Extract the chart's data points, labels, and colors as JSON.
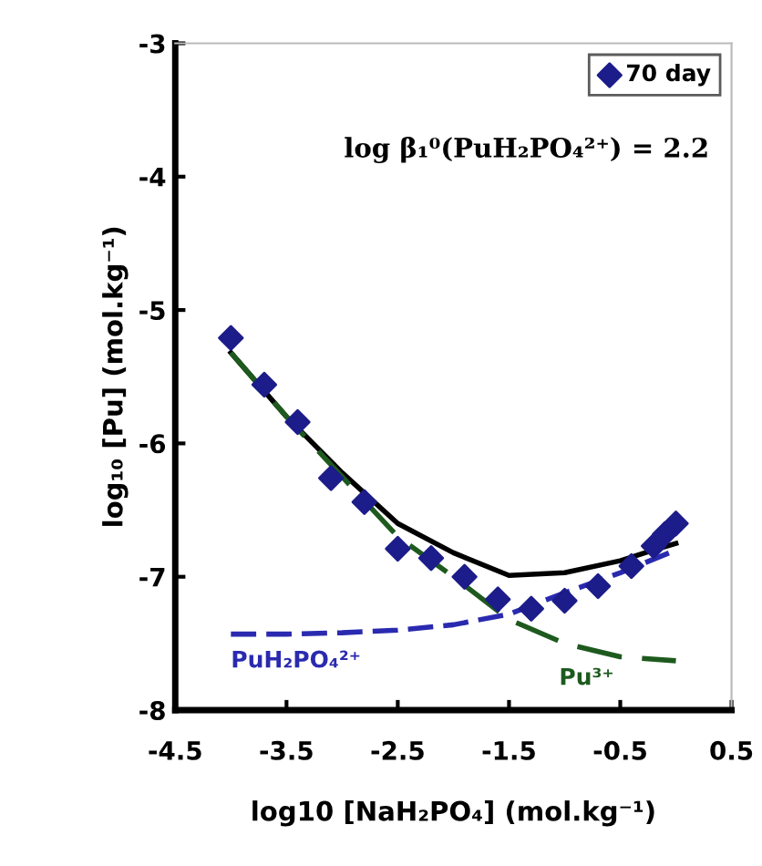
{
  "chart_data": {
    "type": "scatter",
    "xlabel": "log10 [NaH₂PO₄] (mol.kg⁻¹)",
    "ylabel": "log₁₀ [Pu] (mol.kg⁻¹)",
    "annotations": [
      "log β₁⁰(PuH₂PO₄²⁺) = 2.2"
    ],
    "xlim": [
      -4.5,
      0.5
    ],
    "xticks": [
      -4.5,
      -3.5,
      -2.5,
      -1.5,
      -0.5,
      0.5
    ],
    "ylim": [
      -8,
      -3
    ],
    "yticks": [
      -8,
      -7,
      -6,
      -5,
      -4,
      -3
    ],
    "grid": false,
    "legend": "top right",
    "series": [
      {
        "name": "70 day",
        "marker": "diamond",
        "color": "#1c1c8a",
        "x": [
          -4.0,
          -3.7,
          -3.4,
          -3.1,
          -2.8,
          -2.5,
          -2.2,
          -1.9,
          -1.6,
          -1.3,
          -1.0,
          -0.7,
          -0.4,
          -0.2,
          -0.1,
          0.0
        ],
        "values": [
          -5.21,
          -5.56,
          -5.84,
          -6.26,
          -6.44,
          -6.79,
          -6.86,
          -7.0,
          -7.17,
          -7.24,
          -7.18,
          -7.07,
          -6.92,
          -6.77,
          -6.68,
          -6.6
        ]
      },
      {
        "type": "line",
        "line_style": "solid",
        "color": "#000000",
        "x": [
          -4.0,
          -3.5,
          -3.0,
          -2.5,
          -2.0,
          -1.5,
          -1.0,
          -0.5,
          -0.2,
          0.0
        ],
        "values": [
          -5.32,
          -5.8,
          -6.22,
          -6.6,
          -6.82,
          -6.99,
          -6.97,
          -6.88,
          -6.8,
          -6.75
        ]
      },
      {
        "name": "PuH₂PO₄²⁺",
        "type": "line",
        "line_style": "dashed",
        "color": "#2a2ab0",
        "x": [
          -4.0,
          -3.5,
          -3.0,
          -2.5,
          -2.0,
          -1.5,
          -1.0,
          -0.5,
          0.0
        ],
        "values": [
          -7.43,
          -7.43,
          -7.42,
          -7.4,
          -7.36,
          -7.28,
          -7.12,
          -6.97,
          -6.8
        ]
      },
      {
        "name": "Pu³⁺",
        "type": "line",
        "line_style": "dashed",
        "color": "#1e5a1e",
        "x": [
          -4.0,
          -3.5,
          -3.0,
          -2.5,
          -2.0,
          -1.5,
          -1.0,
          -0.5,
          0.0
        ],
        "values": [
          -5.32,
          -5.8,
          -6.25,
          -6.7,
          -7.0,
          -7.32,
          -7.5,
          -7.6,
          -7.63
        ]
      }
    ]
  }
}
